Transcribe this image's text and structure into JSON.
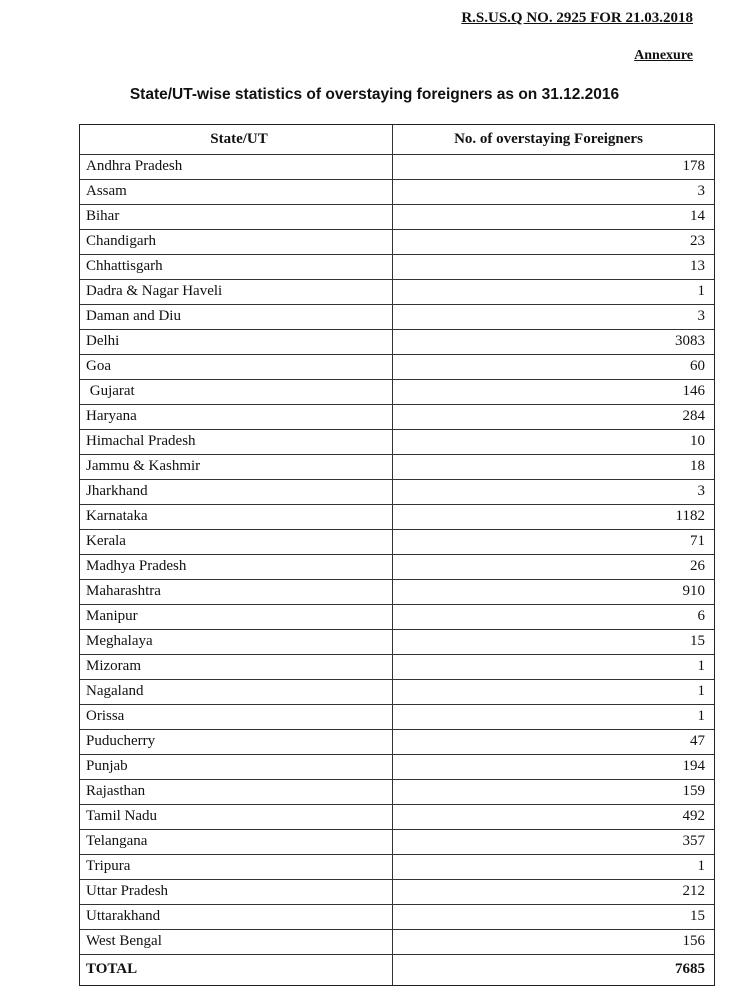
{
  "header": {
    "reference": "R.S.US.Q NO. 2925 FOR 21.03.2018",
    "annexure": "Annexure",
    "title": "State/UT-wise statistics of overstaying foreigners as on 31.12.2016"
  },
  "table": {
    "columns": [
      "State/UT",
      "No. of overstaying Foreigners"
    ],
    "rows": [
      [
        "Andhra Pradesh",
        178
      ],
      [
        "Assam",
        3
      ],
      [
        "Bihar",
        14
      ],
      [
        "Chandigarh",
        23
      ],
      [
        "Chhattisgarh",
        13
      ],
      [
        "Dadra & Nagar Haveli",
        1
      ],
      [
        "Daman and Diu",
        3
      ],
      [
        "Delhi",
        3083
      ],
      [
        "Goa",
        60
      ],
      [
        " Gujarat",
        146
      ],
      [
        "Haryana",
        284
      ],
      [
        "Himachal Pradesh",
        10
      ],
      [
        "Jammu & Kashmir",
        18
      ],
      [
        "Jharkhand",
        3
      ],
      [
        "Karnataka",
        1182
      ],
      [
        "Kerala",
        71
      ],
      [
        "Madhya Pradesh",
        26
      ],
      [
        "Maharashtra",
        910
      ],
      [
        "Manipur",
        6
      ],
      [
        "Meghalaya",
        15
      ],
      [
        "Mizoram",
        1
      ],
      [
        "Nagaland",
        1
      ],
      [
        "Orissa",
        1
      ],
      [
        "Puducherry",
        47
      ],
      [
        "Punjab",
        194
      ],
      [
        "Rajasthan",
        159
      ],
      [
        "Tamil Nadu",
        492
      ],
      [
        "Telangana",
        357
      ],
      [
        "Tripura",
        1
      ],
      [
        "Uttar Pradesh",
        212
      ],
      [
        "Uttarakhand",
        15
      ],
      [
        "West Bengal",
        156
      ]
    ],
    "total": [
      "TOTAL",
      7685
    ]
  }
}
